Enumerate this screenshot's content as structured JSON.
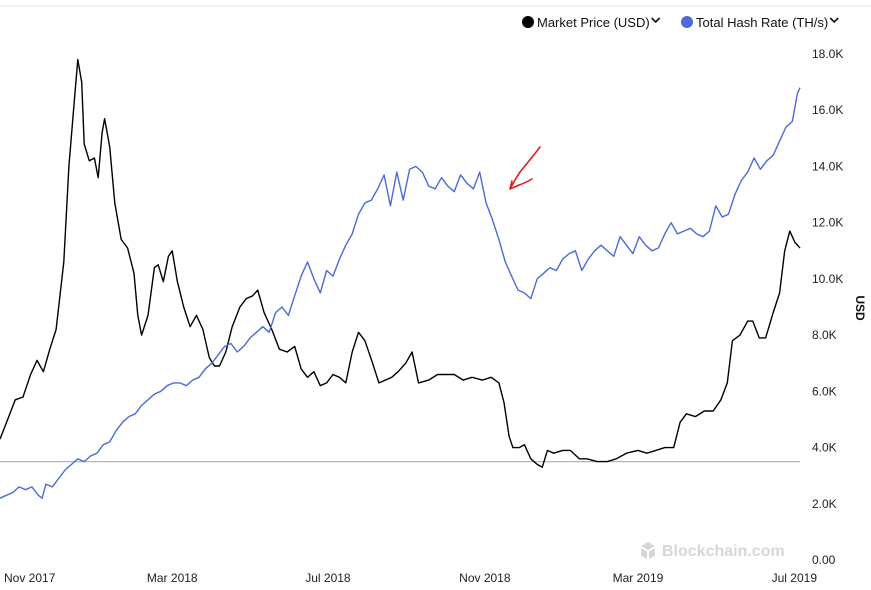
{
  "chart_data": {
    "type": "line",
    "title": "",
    "ylabel": "USD",
    "ylim": [
      0,
      18000
    ],
    "y_ticks": [
      "18.0K",
      "16.0K",
      "14.0K",
      "12.0K",
      "10.0K",
      "8.0K",
      "6.0K",
      "4.0K",
      "2.0K",
      "0.00"
    ],
    "y_tick_values": [
      18000,
      16000,
      14000,
      12000,
      10000,
      8000,
      6000,
      4000,
      2000,
      0
    ],
    "x_ticks": [
      "Nov 2017",
      "Mar 2018",
      "Jul 2018",
      "Nov 2018",
      "Mar 2019",
      "Jul 2019"
    ],
    "x_tick_dates": [
      "2017-11-01",
      "2018-03-01",
      "2018-07-01",
      "2018-11-01",
      "2019-03-01",
      "2019-07-01"
    ],
    "xlim": [
      "2017-10-17",
      "2019-07-06"
    ],
    "reference_line_value": 3500,
    "legend_position": "top-right",
    "watermark": "Blockchain.com",
    "series": [
      {
        "name": "Market Price (USD)",
        "color": "#000000",
        "points": [
          [
            "2017-10-17",
            4300
          ],
          [
            "2017-10-23",
            5000
          ],
          [
            "2017-10-29",
            5700
          ],
          [
            "2017-11-04",
            5800
          ],
          [
            "2017-11-10",
            6600
          ],
          [
            "2017-11-15",
            7100
          ],
          [
            "2017-11-20",
            6700
          ],
          [
            "2017-11-25",
            7500
          ],
          [
            "2017-11-30",
            8200
          ],
          [
            "2017-12-06",
            10600
          ],
          [
            "2017-12-10",
            14000
          ],
          [
            "2017-12-14",
            16200
          ],
          [
            "2017-12-17",
            17800
          ],
          [
            "2017-12-20",
            17000
          ],
          [
            "2017-12-22",
            14800
          ],
          [
            "2017-12-26",
            14200
          ],
          [
            "2017-12-30",
            14300
          ],
          [
            "2018-01-02",
            13600
          ],
          [
            "2018-01-05",
            15200
          ],
          [
            "2018-01-07",
            15700
          ],
          [
            "2018-01-11",
            14700
          ],
          [
            "2018-01-15",
            12700
          ],
          [
            "2018-01-20",
            11400
          ],
          [
            "2018-01-25",
            11100
          ],
          [
            "2018-01-30",
            10200
          ],
          [
            "2018-02-02",
            8700
          ],
          [
            "2018-02-05",
            8000
          ],
          [
            "2018-02-10",
            8700
          ],
          [
            "2018-02-15",
            10400
          ],
          [
            "2018-02-18",
            10500
          ],
          [
            "2018-02-22",
            9900
          ],
          [
            "2018-02-26",
            10800
          ],
          [
            "2018-03-01",
            11000
          ],
          [
            "2018-03-05",
            9900
          ],
          [
            "2018-03-10",
            9000
          ],
          [
            "2018-03-15",
            8300
          ],
          [
            "2018-03-20",
            8700
          ],
          [
            "2018-03-25",
            8200
          ],
          [
            "2018-03-30",
            7200
          ],
          [
            "2018-04-03",
            6900
          ],
          [
            "2018-04-07",
            6900
          ],
          [
            "2018-04-12",
            7400
          ],
          [
            "2018-04-17",
            8300
          ],
          [
            "2018-04-23",
            9000
          ],
          [
            "2018-04-28",
            9300
          ],
          [
            "2018-05-03",
            9400
          ],
          [
            "2018-05-07",
            9600
          ],
          [
            "2018-05-12",
            8800
          ],
          [
            "2018-05-18",
            8200
          ],
          [
            "2018-05-24",
            7500
          ],
          [
            "2018-05-30",
            7400
          ],
          [
            "2018-06-05",
            7600
          ],
          [
            "2018-06-10",
            6800
          ],
          [
            "2018-06-15",
            6500
          ],
          [
            "2018-06-20",
            6700
          ],
          [
            "2018-06-25",
            6200
          ],
          [
            "2018-06-30",
            6300
          ],
          [
            "2018-07-05",
            6600
          ],
          [
            "2018-07-10",
            6500
          ],
          [
            "2018-07-15",
            6300
          ],
          [
            "2018-07-20",
            7400
          ],
          [
            "2018-07-25",
            8100
          ],
          [
            "2018-07-30",
            7800
          ],
          [
            "2018-08-05",
            7000
          ],
          [
            "2018-08-10",
            6300
          ],
          [
            "2018-08-15",
            6400
          ],
          [
            "2018-08-20",
            6500
          ],
          [
            "2018-08-25",
            6700
          ],
          [
            "2018-08-31",
            7000
          ],
          [
            "2018-09-05",
            7400
          ],
          [
            "2018-09-10",
            6300
          ],
          [
            "2018-09-18",
            6400
          ],
          [
            "2018-09-25",
            6600
          ],
          [
            "2018-10-01",
            6600
          ],
          [
            "2018-10-08",
            6600
          ],
          [
            "2018-10-15",
            6400
          ],
          [
            "2018-10-22",
            6500
          ],
          [
            "2018-10-30",
            6400
          ],
          [
            "2018-11-06",
            6500
          ],
          [
            "2018-11-12",
            6300
          ],
          [
            "2018-11-16",
            5600
          ],
          [
            "2018-11-20",
            4400
          ],
          [
            "2018-11-23",
            4000
          ],
          [
            "2018-11-28",
            4000
          ],
          [
            "2018-12-02",
            4100
          ],
          [
            "2018-12-07",
            3600
          ],
          [
            "2018-12-12",
            3400
          ],
          [
            "2018-12-16",
            3300
          ],
          [
            "2018-12-20",
            3900
          ],
          [
            "2018-12-25",
            3800
          ],
          [
            "2019-01-01",
            3900
          ],
          [
            "2019-01-07",
            3900
          ],
          [
            "2019-01-14",
            3600
          ],
          [
            "2019-01-20",
            3600
          ],
          [
            "2019-01-28",
            3500
          ],
          [
            "2019-02-05",
            3500
          ],
          [
            "2019-02-12",
            3600
          ],
          [
            "2019-02-20",
            3800
          ],
          [
            "2019-03-01",
            3900
          ],
          [
            "2019-03-08",
            3800
          ],
          [
            "2019-03-15",
            3900
          ],
          [
            "2019-03-22",
            4000
          ],
          [
            "2019-03-29",
            4000
          ],
          [
            "2019-04-03",
            4900
          ],
          [
            "2019-04-08",
            5200
          ],
          [
            "2019-04-15",
            5100
          ],
          [
            "2019-04-22",
            5300
          ],
          [
            "2019-04-29",
            5300
          ],
          [
            "2019-05-05",
            5700
          ],
          [
            "2019-05-10",
            6300
          ],
          [
            "2019-05-14",
            7800
          ],
          [
            "2019-05-20",
            8000
          ],
          [
            "2019-05-26",
            8500
          ],
          [
            "2019-05-30",
            8500
          ],
          [
            "2019-06-04",
            7900
          ],
          [
            "2019-06-09",
            7900
          ],
          [
            "2019-06-15",
            8800
          ],
          [
            "2019-06-20",
            9500
          ],
          [
            "2019-06-24",
            11000
          ],
          [
            "2019-06-28",
            11700
          ],
          [
            "2019-07-02",
            11300
          ],
          [
            "2019-07-06",
            11100
          ]
        ]
      },
      {
        "name": "Total Hash Rate (TH/s)",
        "color": "#4a6bd8",
        "points": [
          [
            "2017-10-17",
            2200
          ],
          [
            "2017-10-22",
            2300
          ],
          [
            "2017-10-27",
            2400
          ],
          [
            "2017-11-01",
            2600
          ],
          [
            "2017-11-06",
            2500
          ],
          [
            "2017-11-11",
            2600
          ],
          [
            "2017-11-16",
            2300
          ],
          [
            "2017-11-19",
            2200
          ],
          [
            "2017-11-22",
            2700
          ],
          [
            "2017-11-27",
            2600
          ],
          [
            "2017-12-02",
            2900
          ],
          [
            "2017-12-07",
            3200
          ],
          [
            "2017-12-12",
            3400
          ],
          [
            "2017-12-17",
            3600
          ],
          [
            "2017-12-22",
            3500
          ],
          [
            "2017-12-27",
            3700
          ],
          [
            "2018-01-01",
            3800
          ],
          [
            "2018-01-06",
            4100
          ],
          [
            "2018-01-11",
            4200
          ],
          [
            "2018-01-16",
            4600
          ],
          [
            "2018-01-21",
            4900
          ],
          [
            "2018-01-26",
            5100
          ],
          [
            "2018-01-31",
            5200
          ],
          [
            "2018-02-05",
            5500
          ],
          [
            "2018-02-10",
            5700
          ],
          [
            "2018-02-15",
            5900
          ],
          [
            "2018-02-20",
            6000
          ],
          [
            "2018-02-25",
            6200
          ],
          [
            "2018-03-02",
            6300
          ],
          [
            "2018-03-07",
            6300
          ],
          [
            "2018-03-12",
            6200
          ],
          [
            "2018-03-17",
            6400
          ],
          [
            "2018-03-22",
            6500
          ],
          [
            "2018-03-27",
            6800
          ],
          [
            "2018-04-01",
            7000
          ],
          [
            "2018-04-06",
            7300
          ],
          [
            "2018-04-11",
            7600
          ],
          [
            "2018-04-16",
            7700
          ],
          [
            "2018-04-21",
            7400
          ],
          [
            "2018-04-26",
            7600
          ],
          [
            "2018-05-01",
            7900
          ],
          [
            "2018-05-06",
            8100
          ],
          [
            "2018-05-11",
            8300
          ],
          [
            "2018-05-16",
            8100
          ],
          [
            "2018-05-21",
            8800
          ],
          [
            "2018-05-26",
            9000
          ],
          [
            "2018-05-31",
            8700
          ],
          [
            "2018-06-05",
            9400
          ],
          [
            "2018-06-10",
            10100
          ],
          [
            "2018-06-15",
            10600
          ],
          [
            "2018-06-20",
            10000
          ],
          [
            "2018-06-25",
            9500
          ],
          [
            "2018-06-30",
            10300
          ],
          [
            "2018-07-05",
            10100
          ],
          [
            "2018-07-10",
            10700
          ],
          [
            "2018-07-15",
            11200
          ],
          [
            "2018-07-20",
            11600
          ],
          [
            "2018-07-25",
            12300
          ],
          [
            "2018-07-30",
            12700
          ],
          [
            "2018-08-04",
            12800
          ],
          [
            "2018-08-09",
            13200
          ],
          [
            "2018-08-14",
            13700
          ],
          [
            "2018-08-19",
            12600
          ],
          [
            "2018-08-24",
            13800
          ],
          [
            "2018-08-29",
            12800
          ],
          [
            "2018-09-03",
            13900
          ],
          [
            "2018-09-08",
            14000
          ],
          [
            "2018-09-13",
            13800
          ],
          [
            "2018-09-18",
            13300
          ],
          [
            "2018-09-23",
            13200
          ],
          [
            "2018-09-28",
            13600
          ],
          [
            "2018-10-03",
            13300
          ],
          [
            "2018-10-08",
            13100
          ],
          [
            "2018-10-13",
            13700
          ],
          [
            "2018-10-18",
            13400
          ],
          [
            "2018-10-23",
            13200
          ],
          [
            "2018-10-28",
            13800
          ],
          [
            "2018-11-02",
            12700
          ],
          [
            "2018-11-07",
            12100
          ],
          [
            "2018-11-12",
            11400
          ],
          [
            "2018-11-17",
            10600
          ],
          [
            "2018-11-22",
            10100
          ],
          [
            "2018-11-27",
            9600
          ],
          [
            "2018-12-02",
            9500
          ],
          [
            "2018-12-07",
            9300
          ],
          [
            "2018-12-12",
            10000
          ],
          [
            "2018-12-17",
            10200
          ],
          [
            "2018-12-22",
            10400
          ],
          [
            "2018-12-27",
            10300
          ],
          [
            "2019-01-01",
            10700
          ],
          [
            "2019-01-06",
            10900
          ],
          [
            "2019-01-11",
            11000
          ],
          [
            "2019-01-16",
            10300
          ],
          [
            "2019-01-21",
            10700
          ],
          [
            "2019-01-26",
            11000
          ],
          [
            "2019-01-31",
            11200
          ],
          [
            "2019-02-05",
            11000
          ],
          [
            "2019-02-10",
            10800
          ],
          [
            "2019-02-15",
            11500
          ],
          [
            "2019-02-20",
            11200
          ],
          [
            "2019-02-25",
            10900
          ],
          [
            "2019-03-02",
            11500
          ],
          [
            "2019-03-07",
            11200
          ],
          [
            "2019-03-12",
            11000
          ],
          [
            "2019-03-17",
            11100
          ],
          [
            "2019-03-22",
            11600
          ],
          [
            "2019-03-27",
            12000
          ],
          [
            "2019-04-01",
            11600
          ],
          [
            "2019-04-06",
            11700
          ],
          [
            "2019-04-11",
            11800
          ],
          [
            "2019-04-16",
            11600
          ],
          [
            "2019-04-21",
            11500
          ],
          [
            "2019-04-26",
            11700
          ],
          [
            "2019-05-01",
            12600
          ],
          [
            "2019-05-06",
            12200
          ],
          [
            "2019-05-11",
            12300
          ],
          [
            "2019-05-16",
            13000
          ],
          [
            "2019-05-21",
            13500
          ],
          [
            "2019-05-26",
            13800
          ],
          [
            "2019-05-31",
            14300
          ],
          [
            "2019-06-05",
            13900
          ],
          [
            "2019-06-10",
            14200
          ],
          [
            "2019-06-15",
            14400
          ],
          [
            "2019-06-20",
            14900
          ],
          [
            "2019-06-25",
            15400
          ],
          [
            "2019-06-30",
            15600
          ],
          [
            "2019-07-04",
            16600
          ],
          [
            "2019-07-06",
            16800
          ]
        ]
      }
    ]
  }
}
